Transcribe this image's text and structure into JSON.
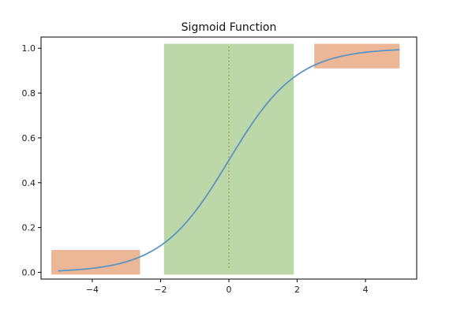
{
  "chart_data": {
    "type": "line",
    "title": "Sigmoid Function",
    "xlabel": "",
    "ylabel": "",
    "xlim": [
      -5.5,
      5.5
    ],
    "ylim": [
      -0.03,
      1.05
    ],
    "xticks": [
      -4,
      -2,
      0,
      2,
      4
    ],
    "yticks": [
      0.0,
      0.2,
      0.4,
      0.6,
      0.8,
      1.0
    ],
    "ytick_labels": [
      "0.0",
      "0.2",
      "0.4",
      "0.6",
      "0.8",
      "1.0"
    ],
    "xtick_labels": [
      "−4",
      "−2",
      "0",
      "2",
      "4"
    ],
    "grid": false,
    "series": [
      {
        "function": "sigmoid",
        "color": "#5b95c4",
        "x": [
          -5,
          -4.5,
          -4,
          -3.5,
          -3,
          -2.5,
          -2,
          -1.5,
          -1,
          -0.5,
          0,
          0.5,
          1,
          1.5,
          2,
          2.5,
          3,
          3.5,
          4,
          4.5,
          5
        ],
        "values": [
          0.0067,
          0.011,
          0.018,
          0.0293,
          0.0474,
          0.0759,
          0.1192,
          0.1824,
          0.2689,
          0.3775,
          0.5,
          0.6225,
          0.7311,
          0.8176,
          0.8808,
          0.9241,
          0.9526,
          0.9707,
          0.982,
          0.989,
          0.9933
        ]
      }
    ],
    "shaded_regions": [
      {
        "x0": -5.2,
        "x1": -2.6,
        "y0": -0.01,
        "y1": 0.1,
        "color": "#e4986a",
        "opacity": 0.7
      },
      {
        "x0": -1.9,
        "x1": 1.9,
        "y0": -0.01,
        "y1": 1.02,
        "color": "#98c27a",
        "opacity": 0.65
      },
      {
        "x0": 2.5,
        "x1": 5.0,
        "y0": 0.91,
        "y1": 1.02,
        "color": "#e4986a",
        "opacity": 0.7
      }
    ],
    "reference_lines": [
      {
        "x": 0,
        "style": "dotted",
        "color": "#a09a3a"
      }
    ]
  }
}
